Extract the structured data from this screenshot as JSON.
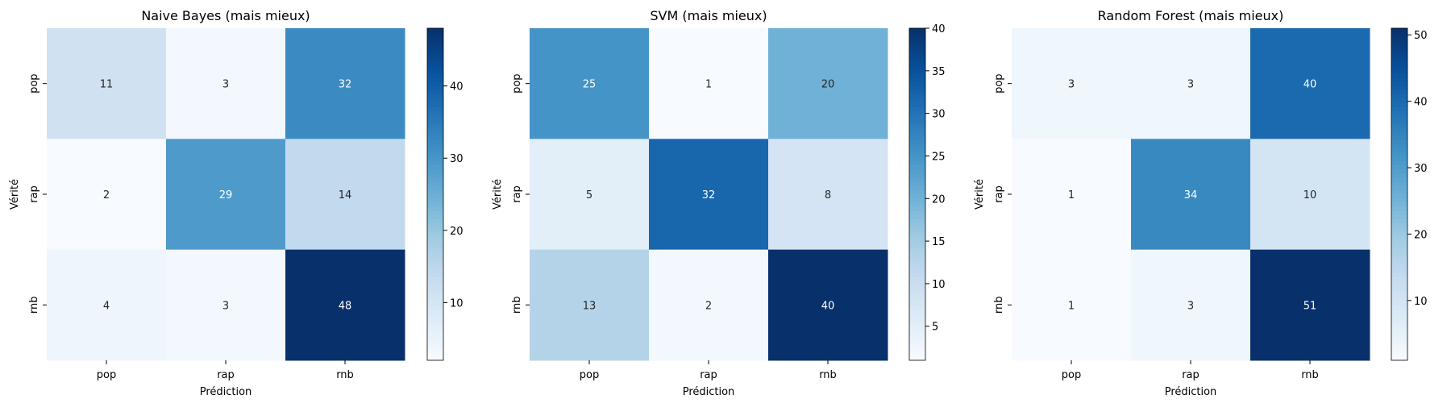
{
  "chart_data": [
    {
      "type": "heatmap",
      "title": "Naive Bayes (mais mieux)",
      "xlabel": "Prédiction",
      "ylabel": "Vérité",
      "x_categories": [
        "pop",
        "rap",
        "rnb"
      ],
      "y_categories": [
        "pop",
        "rap",
        "rnb"
      ],
      "values": [
        [
          11,
          3,
          32
        ],
        [
          2,
          29,
          14
        ],
        [
          4,
          3,
          48
        ]
      ],
      "colormap": "Blues",
      "vmin": 2,
      "vmax": 48,
      "colorbar_ticks": [
        10,
        20,
        30,
        40
      ]
    },
    {
      "type": "heatmap",
      "title": "SVM (mais mieux)",
      "xlabel": "Prédiction",
      "ylabel": "Vérité",
      "x_categories": [
        "pop",
        "rap",
        "rnb"
      ],
      "y_categories": [
        "pop",
        "rap",
        "rnb"
      ],
      "values": [
        [
          25,
          1,
          20
        ],
        [
          5,
          32,
          8
        ],
        [
          13,
          2,
          40
        ]
      ],
      "colormap": "Blues",
      "vmin": 1,
      "vmax": 40,
      "colorbar_ticks": [
        5,
        10,
        15,
        20,
        25,
        30,
        35,
        40
      ]
    },
    {
      "type": "heatmap",
      "title": "Random Forest (mais mieux)",
      "xlabel": "Prédiction",
      "ylabel": "Vérité",
      "x_categories": [
        "pop",
        "rap",
        "rnb"
      ],
      "y_categories": [
        "pop",
        "rap",
        "rnb"
      ],
      "values": [
        [
          3,
          3,
          40
        ],
        [
          1,
          34,
          10
        ],
        [
          1,
          3,
          51
        ]
      ],
      "colormap": "Blues",
      "vmin": 1,
      "vmax": 51,
      "colorbar_ticks": [
        10,
        20,
        30,
        40,
        50
      ]
    }
  ]
}
